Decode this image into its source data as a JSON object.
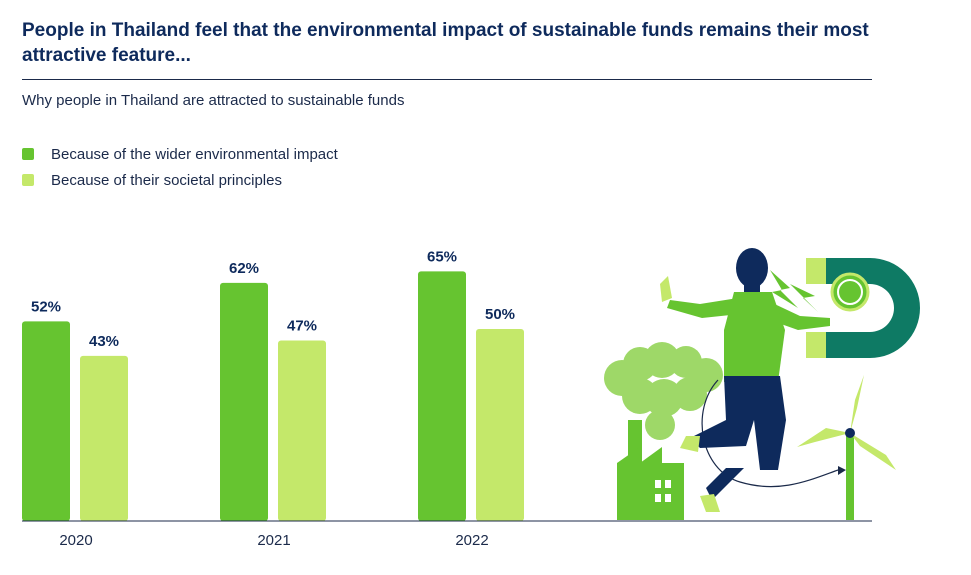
{
  "title": "People in Thailand feel that the environmental impact of sustainable funds remains their most attractive feature...",
  "subtitle": "Why people in Thailand are attracted to sustainable funds",
  "colors": {
    "environmental": "#66c430",
    "societal": "#c4e86a",
    "axis": "#1b2a4a"
  },
  "legend": [
    {
      "label": "Because of the wider environmental impact",
      "color": "#66c430"
    },
    {
      "label": "Because of their societal principles",
      "color": "#c4e86a"
    }
  ],
  "chart_data": {
    "type": "bar",
    "title": "Why people in Thailand are attracted to sustainable funds",
    "categories": [
      "2020",
      "2021",
      "2022"
    ],
    "series": [
      {
        "name": "Because of the wider environmental impact",
        "values": [
          52,
          62,
          65
        ]
      },
      {
        "name": "Because of their societal principles",
        "values": [
          43,
          47,
          50
        ]
      }
    ],
    "value_labels": [
      [
        "52%",
        "62%",
        "65%"
      ],
      [
        "43%",
        "47%",
        "50%"
      ]
    ],
    "unit": "%",
    "ylim": [
      0,
      100
    ],
    "grid": false,
    "legend_position": "top-left"
  }
}
